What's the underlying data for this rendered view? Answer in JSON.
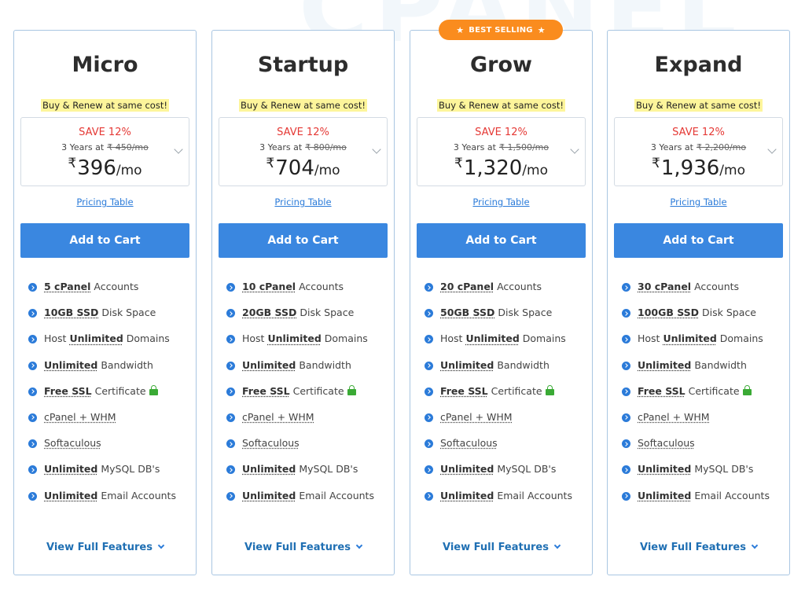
{
  "background_text": "CPANEL",
  "badge": {
    "label": "BEST SELLING",
    "icon": "star-icon",
    "color": "#fa8c1e"
  },
  "common": {
    "promo": "Buy & Renew at same cost!",
    "save": "SAVE 12%",
    "term_prefix": "3 Years at",
    "currency": "₹",
    "per": "/mo",
    "pricing_table": "Pricing Table",
    "add_to_cart": "Add to Cart",
    "view_full": "View Full Features"
  },
  "colors": {
    "accent": "#3a87e0",
    "save": "#e53935",
    "promo_highlight": "#fdf59b",
    "lock": "#3aaa35"
  },
  "plans": [
    {
      "name": "Micro",
      "old_price": "₹ 450/mo",
      "price": "396",
      "features": {
        "cpanel": "5 cPanel",
        "ssd": "10GB SSD"
      }
    },
    {
      "name": "Startup",
      "old_price": "₹ 800/mo",
      "price": "704",
      "features": {
        "cpanel": "10 cPanel",
        "ssd": "20GB SSD"
      }
    },
    {
      "name": "Grow",
      "old_price": "₹ 1,500/mo",
      "price": "1,320",
      "features": {
        "cpanel": "20 cPanel",
        "ssd": "50GB SSD"
      }
    },
    {
      "name": "Expand",
      "old_price": "₹ 2,200/mo",
      "price": "1,936",
      "features": {
        "cpanel": "30 cPanel",
        "ssd": "100GB SSD"
      }
    }
  ],
  "feature_text": {
    "accounts": "Accounts",
    "disk": "Disk Space",
    "host": "Host",
    "unlimited": "Unlimited",
    "domains": "Domains",
    "bandwidth": "Bandwidth",
    "free_ssl": "Free SSL",
    "certificate": "Certificate",
    "whm": "cPanel + WHM",
    "softaculous": "Softaculous",
    "mysql": "MySQL DB's",
    "email": "Email Accounts"
  }
}
